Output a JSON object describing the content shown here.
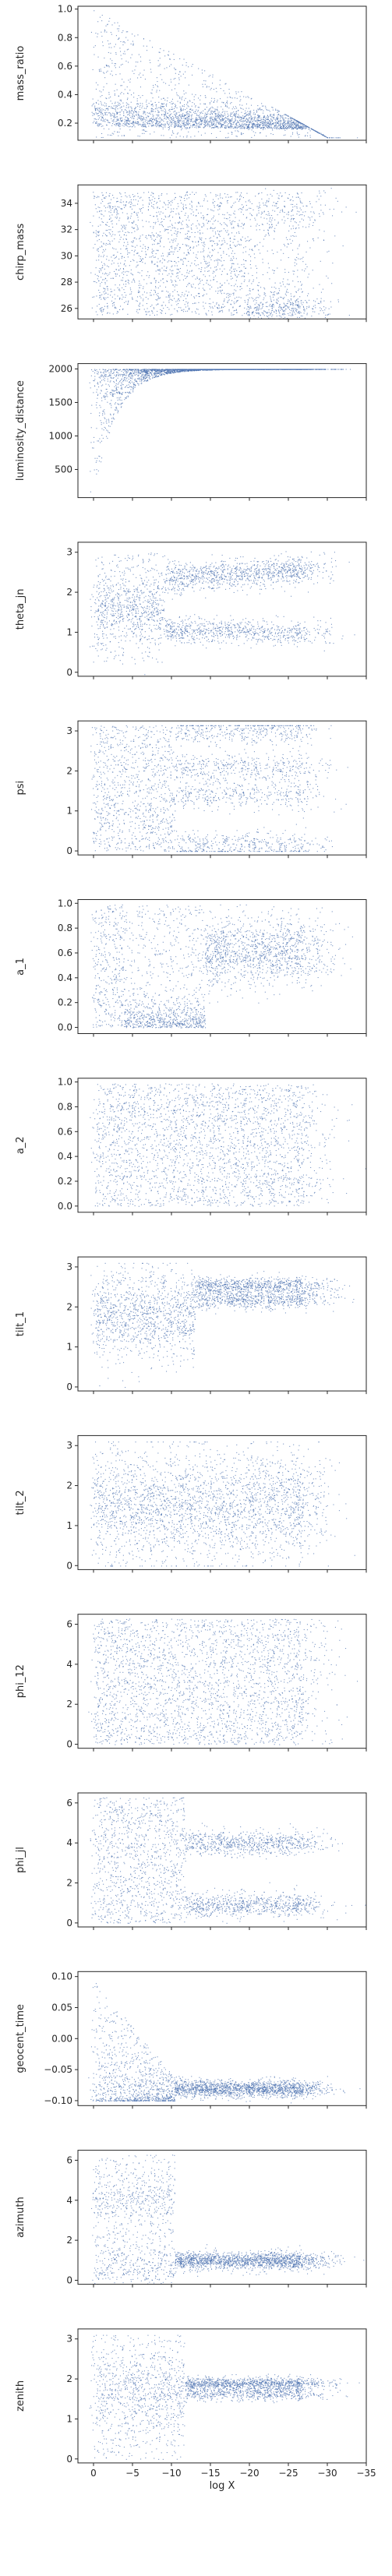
{
  "colors": {
    "points": "#4c72b0",
    "axis": "#262626",
    "background": "#ffffff"
  },
  "chart_data": {
    "type": "scatter",
    "x_label": "log X",
    "x_range": [
      2,
      -35
    ],
    "x_ticks": [
      0,
      -5,
      -10,
      -15,
      -20,
      -25,
      -30,
      -35
    ],
    "x_tick_labels": [
      "0",
      "−5",
      "−10",
      "−15",
      "−20",
      "−25",
      "−30",
      "−35"
    ],
    "grid": false,
    "legend": "none",
    "panels": [
      {
        "name": "mass_ratio",
        "ylim": [
          0.08,
          1.02
        ],
        "y_ticks": [
          0.2,
          0.4,
          0.6,
          0.8,
          1.0
        ],
        "y_tick_labels": [
          "0.2",
          "0.4",
          "0.6",
          "0.8",
          "1.0"
        ]
      },
      {
        "name": "chirp_mass",
        "ylim": [
          25.2,
          35.4
        ],
        "y_ticks": [
          26,
          28,
          30,
          32,
          34
        ],
        "y_tick_labels": [
          "26",
          "28",
          "30",
          "32",
          "34"
        ]
      },
      {
        "name": "luminosity_distance",
        "ylim": [
          80,
          2080
        ],
        "y_ticks": [
          500,
          1000,
          1500,
          2000
        ],
        "y_tick_labels": [
          "500",
          "1000",
          "1500",
          "2000"
        ]
      },
      {
        "name": "theta_jn",
        "ylim": [
          -0.1,
          3.25
        ],
        "y_ticks": [
          0,
          1,
          2,
          3
        ],
        "y_tick_labels": [
          "0",
          "1",
          "2",
          "3"
        ]
      },
      {
        "name": "psi",
        "ylim": [
          -0.1,
          3.25
        ],
        "y_ticks": [
          0,
          1,
          2,
          3
        ],
        "y_tick_labels": [
          "0",
          "1",
          "2",
          "3"
        ]
      },
      {
        "name": "a_1",
        "ylim": [
          -0.05,
          1.03
        ],
        "y_ticks": [
          0.0,
          0.2,
          0.4,
          0.6,
          0.8,
          1.0
        ],
        "y_tick_labels": [
          "0.0",
          "0.2",
          "0.4",
          "0.6",
          "0.8",
          "1.0"
        ]
      },
      {
        "name": "a_2",
        "ylim": [
          -0.05,
          1.03
        ],
        "y_ticks": [
          0.0,
          0.2,
          0.4,
          0.6,
          0.8,
          1.0
        ],
        "y_tick_labels": [
          "0.0",
          "0.2",
          "0.4",
          "0.6",
          "0.8",
          "1.0"
        ]
      },
      {
        "name": "tilt_1",
        "ylim": [
          -0.1,
          3.25
        ],
        "y_ticks": [
          0,
          1,
          2,
          3
        ],
        "y_tick_labels": [
          "0",
          "1",
          "2",
          "3"
        ]
      },
      {
        "name": "tilt_2",
        "ylim": [
          -0.1,
          3.25
        ],
        "y_ticks": [
          0,
          1,
          2,
          3
        ],
        "y_tick_labels": [
          "0",
          "1",
          "2",
          "3"
        ]
      },
      {
        "name": "phi_12",
        "ylim": [
          -0.2,
          6.5
        ],
        "y_ticks": [
          0,
          2,
          4,
          6
        ],
        "y_tick_labels": [
          "0",
          "2",
          "4",
          "6"
        ]
      },
      {
        "name": "phi_jl",
        "ylim": [
          -0.2,
          6.5
        ],
        "y_ticks": [
          0,
          2,
          4,
          6
        ],
        "y_tick_labels": [
          "0",
          "2",
          "4",
          "6"
        ]
      },
      {
        "name": "geocent_time",
        "ylim": [
          -0.108,
          0.108
        ],
        "y_ticks": [
          -0.1,
          -0.05,
          0.0,
          0.05,
          0.1
        ],
        "y_tick_labels": [
          "−0.10",
          "−0.05",
          "0.00",
          "0.05",
          "0.10"
        ]
      },
      {
        "name": "azimuth",
        "ylim": [
          -0.2,
          6.5
        ],
        "y_ticks": [
          0,
          2,
          4,
          6
        ],
        "y_tick_labels": [
          "0",
          "2",
          "4",
          "6"
        ]
      },
      {
        "name": "zenith",
        "ylim": [
          -0.1,
          3.25
        ],
        "y_ticks": [
          0,
          1,
          2,
          3
        ],
        "y_tick_labels": [
          "0",
          "1",
          "2",
          "3"
        ]
      }
    ]
  }
}
